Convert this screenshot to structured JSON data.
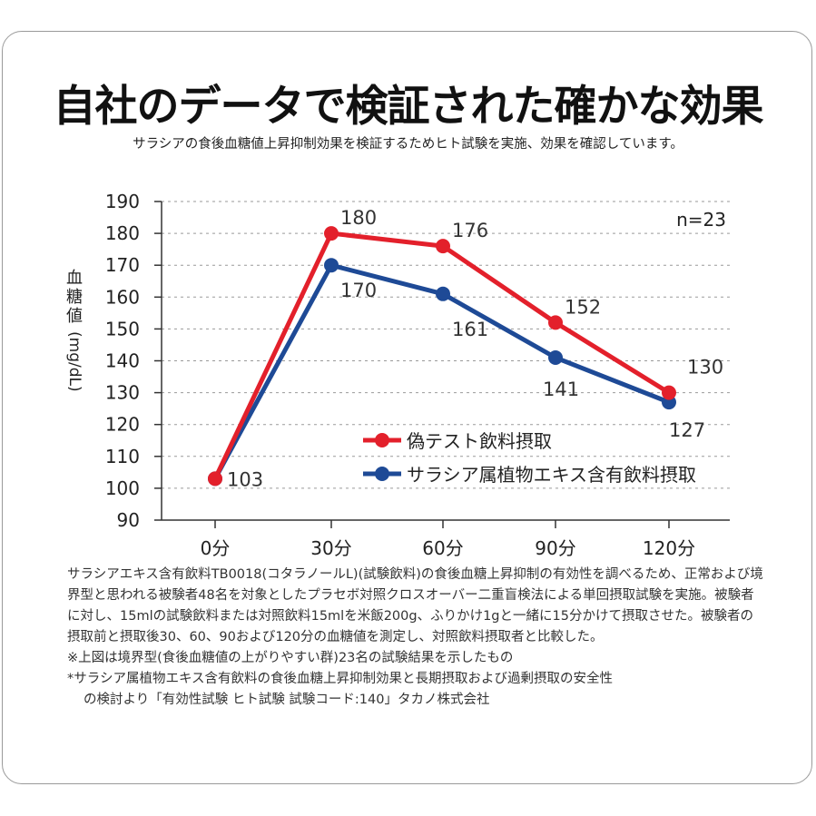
{
  "title": "自社のデータで検証された確かな効果",
  "subtitle": "サラシアの食後血糖値上昇抑制効果を検証するためヒト試験を実施、効果を確認しています。",
  "chart_data": {
    "type": "line",
    "categories": [
      "0分",
      "30分",
      "60分",
      "90分",
      "120分"
    ],
    "series": [
      {
        "name": "偽テスト飲料摂取",
        "values": [
          103,
          180,
          176,
          152,
          130
        ],
        "color": "#e3202b"
      },
      {
        "name": "サラシア属植物エキス含有飲料摂取",
        "values": [
          103,
          170,
          161,
          141,
          127
        ],
        "color": "#1e4a96"
      }
    ],
    "data_labels": {
      "series0": [
        "103",
        "180",
        "176",
        "152",
        "130"
      ],
      "series1": [
        "",
        "170",
        "161",
        "141",
        "127"
      ]
    },
    "ylabel": "血糖値",
    "ylabel_unit": "(mg/dL)",
    "ylim": [
      90,
      190
    ],
    "yticks": [
      "90",
      "100",
      "110",
      "120",
      "130",
      "140",
      "150",
      "160",
      "170",
      "180",
      "190"
    ],
    "annotation": "n=23",
    "grid": true,
    "legend_position": "lower-right"
  },
  "notes": {
    "line1": "サラシアエキス含有飲料TB0018(コタラノールL)(試験飲料)の食後血糖上昇抑制の有効性を調べるため、正常および境界型と思われる被験者48名を対象としたプラセボ対照クロスオーバー二重盲検法による単回摂取試験を実施。被験者に対し、15mlの試験飲料または対照飲料15mlを米飯200g、ふりかけ1gと一緒に15分かけて摂取させた。被験者の摂取前と摂取後30、60、90および120分の血糖値を測定し、対照飲料摂取者と比較した。",
    "line2": "※上図は境界型(食後血糖値の上がりやすい群)23名の試験結果を示したもの",
    "line3": "*サラシア属植物エキス含有飲料の食後血糖上昇抑制効果と長期摂取および過剰摂取の安全性",
    "line4": "の検討より「有効性試験 ヒト試験 試験コード:140」タカノ株式会社"
  }
}
